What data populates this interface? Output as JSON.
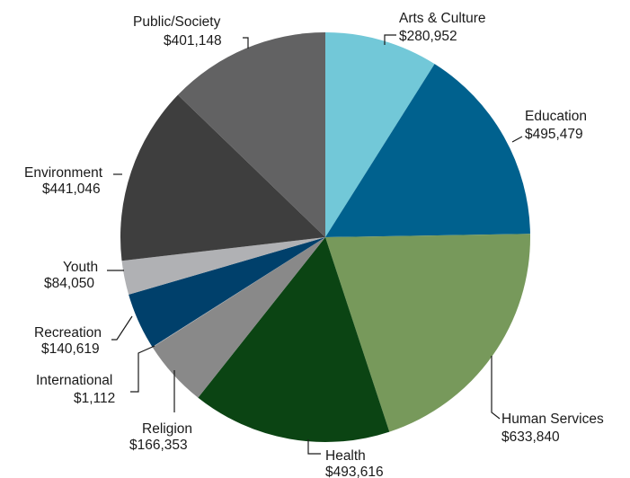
{
  "chart_data": {
    "type": "pie",
    "slices": [
      {
        "label": "Arts & Culture",
        "value_label": "$280,952",
        "value": 280952,
        "color": "#72c8d8"
      },
      {
        "label": "Education",
        "value_label": "$495,479",
        "value": 495479,
        "color": "#00618e"
      },
      {
        "label": "Human Services",
        "value_label": "$633,840",
        "value": 633840,
        "color": "#77995b"
      },
      {
        "label": "Health",
        "value_label": "$493,616",
        "value": 493616,
        "color": "#0b4413"
      },
      {
        "label": "Religion",
        "value_label": "$166,353",
        "value": 166353,
        "color": "#898989"
      },
      {
        "label": "International",
        "value_label": "$1,112",
        "value": 1112,
        "color": "#b8b9bb"
      },
      {
        "label": "Recreation",
        "value_label": "$140,619",
        "value": 140619,
        "color": "#00406b"
      },
      {
        "label": "Youth",
        "value_label": "$84,050",
        "value": 84050,
        "color": "#b0b1b4"
      },
      {
        "label": "Environment",
        "value_label": "$441,046",
        "value": 441046,
        "color": "#3e3e3e"
      },
      {
        "label": "Public/Society",
        "value_label": "$401,148",
        "value": 401148,
        "color": "#626263"
      }
    ]
  }
}
